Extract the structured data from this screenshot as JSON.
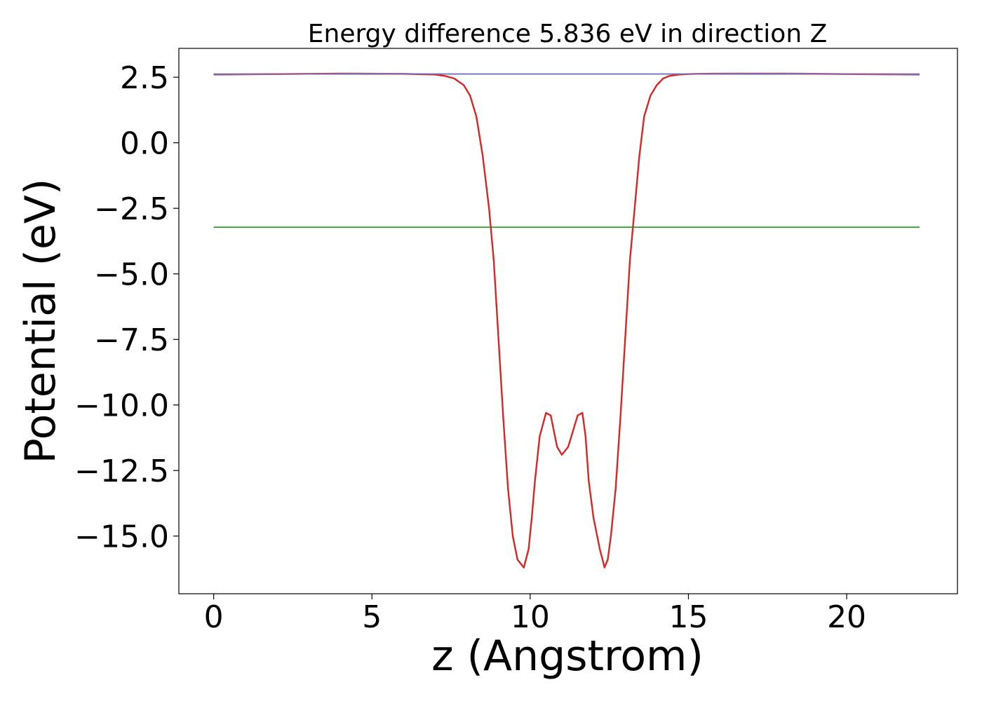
{
  "chart_data": {
    "type": "line",
    "title": "Energy difference 5.836 eV in direction Z",
    "xlabel": "z (Angstrom)",
    "ylabel": "Potential (eV)",
    "xlim": [
      -1.1,
      23.5
    ],
    "ylim": [
      -17.2,
      3.6
    ],
    "xticks": [
      0,
      5,
      10,
      15,
      20
    ],
    "yticks": [
      2.5,
      0.0,
      -2.5,
      -5.0,
      -7.5,
      -10.0,
      -12.5,
      -15.0
    ],
    "grid": false,
    "legend": "none",
    "series": [
      {
        "color": "#1f77b4",
        "x": [
          0,
          22.3
        ],
        "y": [
          2.62,
          2.62
        ]
      },
      {
        "color": "#2ca02c",
        "x": [
          0,
          22.3
        ],
        "y": [
          -3.22,
          -3.22
        ]
      },
      {
        "color": "#d62728",
        "x": [
          0,
          2,
          4,
          4.5,
          6,
          7,
          7.3,
          7.6,
          7.9,
          8.1,
          8.3,
          8.5,
          8.7,
          8.85,
          9.0,
          9.15,
          9.3,
          9.45,
          9.6,
          9.8,
          9.95,
          10.05,
          10.15,
          10.3,
          10.5,
          10.65,
          10.75,
          10.85,
          11.0,
          11.2,
          11.35,
          11.5,
          11.65,
          11.75,
          11.85,
          12.0,
          12.2,
          12.35,
          12.45,
          12.55,
          12.7,
          12.85,
          13.0,
          13.15,
          13.3,
          13.45,
          13.6,
          13.8,
          14.0,
          14.2,
          14.4,
          14.7,
          15.0,
          15.3,
          16.5,
          18,
          20,
          22.3
        ],
        "y": [
          2.6,
          2.62,
          2.64,
          2.64,
          2.63,
          2.6,
          2.55,
          2.45,
          2.2,
          1.8,
          1.0,
          -0.5,
          -2.5,
          -4.5,
          -7.5,
          -10.5,
          -13.2,
          -15.0,
          -15.9,
          -16.2,
          -15.5,
          -14.3,
          -12.9,
          -11.2,
          -10.3,
          -10.4,
          -11.0,
          -11.6,
          -11.9,
          -11.6,
          -11.0,
          -10.4,
          -10.3,
          -11.2,
          -12.9,
          -14.3,
          -15.5,
          -16.2,
          -15.9,
          -15.0,
          -13.2,
          -10.5,
          -7.5,
          -4.5,
          -2.5,
          -0.5,
          1.0,
          1.8,
          2.2,
          2.45,
          2.55,
          2.6,
          2.62,
          2.63,
          2.64,
          2.64,
          2.62,
          2.6
        ]
      },
      {
        "color": "#7d6fb8",
        "x": [
          0,
          3,
          5,
          7.2,
          14.9,
          17,
          19,
          22.3
        ],
        "y": [
          2.6,
          2.62,
          2.64,
          2.62,
          2.62,
          2.64,
          2.63,
          2.6
        ]
      }
    ]
  }
}
